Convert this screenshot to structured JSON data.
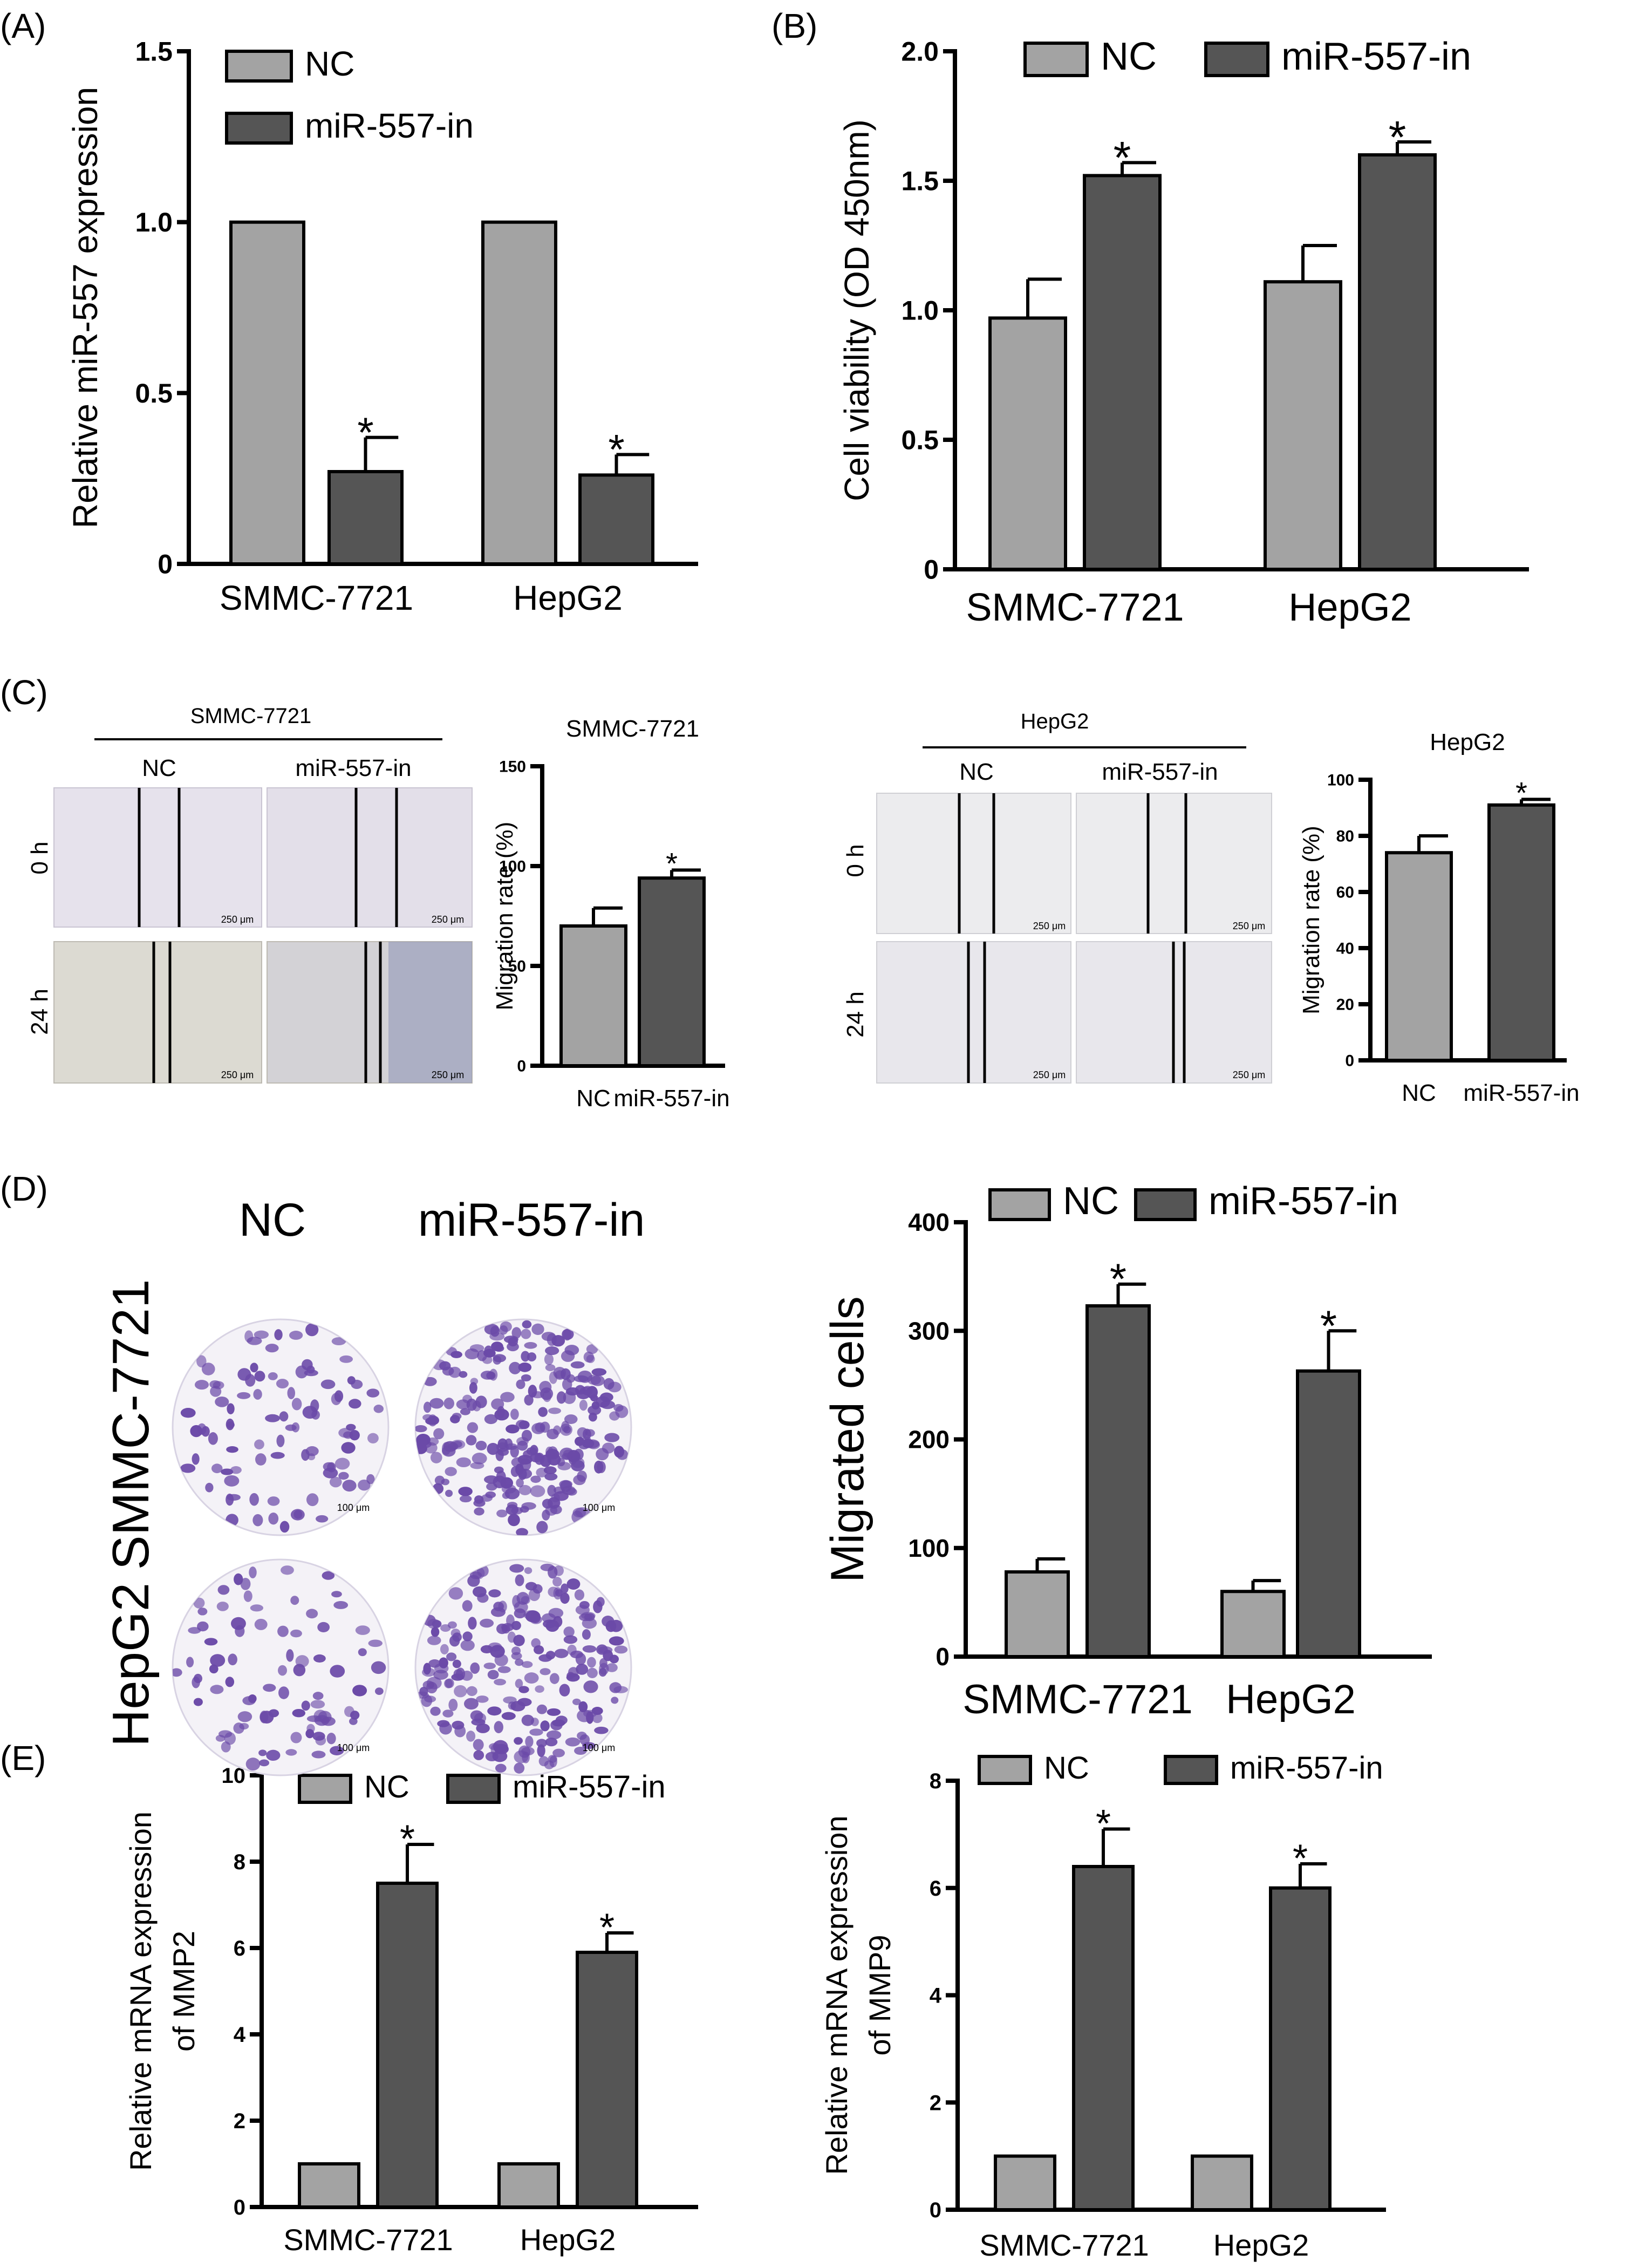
{
  "figure": {
    "panel_labels": [
      "(A)",
      "(B)",
      "(C)",
      "(D)",
      "(E)"
    ],
    "colors": {
      "nc": "#a3a3a3",
      "mir": "#555555",
      "axis": "#000000",
      "wound_bg": "#e9e6ea",
      "cell": "#6b4aa8",
      "crystal_bg": "#f4f2f7"
    }
  },
  "panel_c_images": {
    "left": {
      "header": "SMMC-7721",
      "col_labels": [
        "NC",
        "miR-557-in"
      ],
      "row_labels": [
        "0 h",
        "24 h"
      ],
      "scale": "250 μm"
    },
    "right": {
      "header": "HepG2",
      "col_labels": [
        "NC",
        "miR-557-in"
      ],
      "row_labels": [
        "0 h",
        "24 h"
      ],
      "scale": "250 μm"
    },
    "migration_values": {
      "smmc_nc": 70,
      "smmc_mir": 94,
      "hepg2_nc": 74,
      "hepg2_mir": 91
    }
  },
  "panel_d_images": {
    "col_labels": [
      "NC",
      "miR-557-in"
    ],
    "row_labels": [
      "SMMC-7721",
      "HepG2"
    ],
    "scale": "100 μm"
  },
  "chart_data": [
    {
      "id": "A",
      "type": "bar",
      "title": "",
      "ylabel": "Relative miR-557 expression",
      "xlabel": "",
      "categories": [
        "SMMC-7721",
        "HepG2"
      ],
      "series": [
        {
          "name": "NC",
          "values": [
            1.0,
            1.0
          ],
          "errors": [
            0,
            0
          ]
        },
        {
          "name": "miR-557-in",
          "values": [
            0.27,
            0.26
          ],
          "errors": [
            0.1,
            0.06
          ]
        }
      ],
      "ylim": [
        0,
        1.5
      ],
      "yticks": [
        "0",
        "0.5",
        "1.0",
        "1.5"
      ],
      "significance": [
        "",
        "*",
        "",
        "*"
      ],
      "legend": "top, stacked"
    },
    {
      "id": "B",
      "type": "bar",
      "title": "",
      "ylabel": "Cell viability (OD 450nm)",
      "xlabel": "",
      "categories": [
        "SMMC-7721",
        "HepG2"
      ],
      "series": [
        {
          "name": "NC",
          "values": [
            0.97,
            1.11
          ],
          "errors": [
            0.15,
            0.14
          ]
        },
        {
          "name": "miR-557-in",
          "values": [
            1.52,
            1.6
          ],
          "errors": [
            0.05,
            0.05
          ]
        }
      ],
      "ylim": [
        0,
        2.0
      ],
      "yticks": [
        "0",
        "0.5",
        "1.0",
        "1.5",
        "2.0"
      ],
      "significance": [
        "",
        "*",
        "",
        "*"
      ],
      "legend": "top, inline"
    },
    {
      "id": "C1",
      "type": "bar",
      "title": "SMMC-7721",
      "ylabel": "Migration rate (%)",
      "xlabel": "",
      "categories": [
        "NC",
        "miR-557-in"
      ],
      "series": [
        {
          "name": "Migration rate",
          "values": [
            70,
            94
          ],
          "errors": [
            9,
            4
          ]
        }
      ],
      "ylim": [
        0,
        150
      ],
      "yticks": [
        "0",
        "50",
        "100",
        "150"
      ],
      "significance": [
        "",
        "*"
      ]
    },
    {
      "id": "C2",
      "type": "bar",
      "title": "HepG2",
      "ylabel": "Migration rate (%)",
      "xlabel": "",
      "categories": [
        "NC",
        "miR-557-in"
      ],
      "series": [
        {
          "name": "Migration rate",
          "values": [
            74,
            91
          ],
          "errors": [
            6,
            2
          ]
        }
      ],
      "ylim": [
        0,
        100
      ],
      "yticks": [
        "0",
        "20",
        "40",
        "60",
        "80",
        "100"
      ],
      "significance": [
        "",
        "*"
      ]
    },
    {
      "id": "D",
      "type": "bar",
      "title": "",
      "ylabel": "Migrated cells",
      "xlabel": "",
      "categories": [
        "SMMC-7721",
        "HepG2"
      ],
      "series": [
        {
          "name": "NC",
          "values": [
            78,
            60
          ],
          "errors": [
            12,
            10
          ]
        },
        {
          "name": "miR-557-in",
          "values": [
            323,
            263
          ],
          "errors": [
            20,
            37
          ]
        }
      ],
      "ylim": [
        0,
        400
      ],
      "yticks": [
        "0",
        "100",
        "200",
        "300",
        "400"
      ],
      "significance": [
        "",
        "*",
        "",
        "*"
      ],
      "legend": "top, inline"
    },
    {
      "id": "E1",
      "type": "bar",
      "title": "",
      "ylabel": "Relative mRNA expression of MMP2",
      "xlabel": "",
      "categories": [
        "SMMC-7721",
        "HepG2"
      ],
      "series": [
        {
          "name": "NC",
          "values": [
            1.0,
            1.0
          ],
          "errors": [
            0,
            0
          ]
        },
        {
          "name": "miR-557-in",
          "values": [
            7.5,
            5.9
          ],
          "errors": [
            0.9,
            0.45
          ]
        }
      ],
      "ylim": [
        0,
        10
      ],
      "yticks": [
        "0",
        "2",
        "4",
        "6",
        "8",
        "10"
      ],
      "significance": [
        "",
        "*",
        "",
        "*"
      ],
      "legend": "top, inline"
    },
    {
      "id": "E2",
      "type": "bar",
      "title": "",
      "ylabel": "Relative mRNA expression of MMP9",
      "xlabel": "",
      "categories": [
        "SMMC-7721",
        "HepG2"
      ],
      "series": [
        {
          "name": "NC",
          "values": [
            1.0,
            1.0
          ],
          "errors": [
            0,
            0
          ]
        },
        {
          "name": "miR-557-in",
          "values": [
            6.4,
            6.0
          ],
          "errors": [
            0.7,
            0.45
          ]
        }
      ],
      "ylim": [
        0,
        8
      ],
      "yticks": [
        "0",
        "2",
        "4",
        "6",
        "8"
      ],
      "significance": [
        "",
        "*",
        "",
        "*"
      ],
      "legend": "top, inline"
    }
  ]
}
